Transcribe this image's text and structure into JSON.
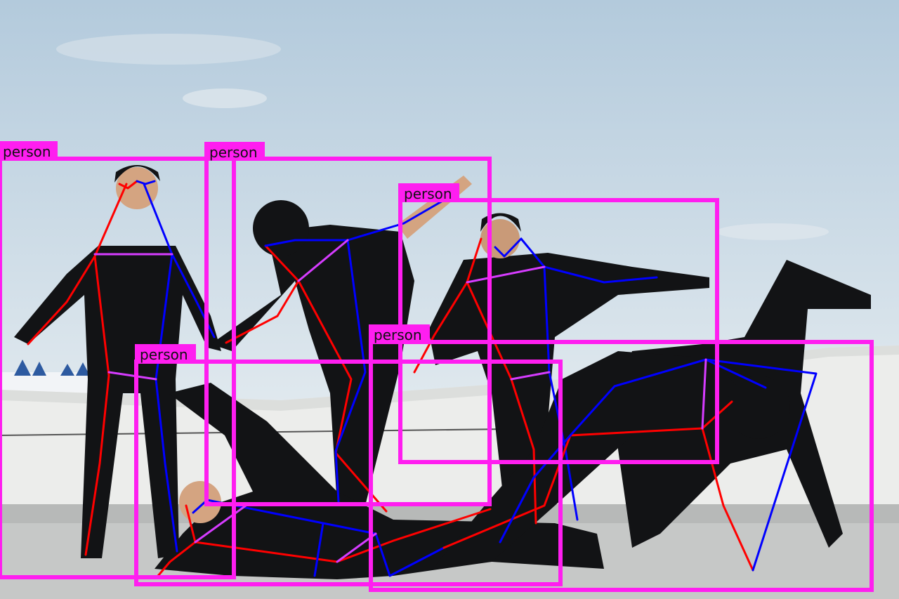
{
  "image": {
    "description_kind": "pose-estimation overlay on photo of dancers on a rooftop"
  },
  "colors": {
    "box": "#ff1ef0",
    "left_limb": "#ff0000",
    "right_limb": "#0000ff",
    "torso": "#d63cff",
    "label_text": "#111111",
    "sky_top": "#b9cfe0",
    "sky_bottom": "#dfe8ee",
    "wall": "#eeeeec",
    "ground": "#c7c9c8",
    "clothing": "#111214",
    "skin": "#d9a985"
  },
  "detections": [
    {
      "label": "person"
    },
    {
      "label": "person"
    },
    {
      "label": "person"
    },
    {
      "label": "person"
    },
    {
      "label": "person"
    }
  ]
}
